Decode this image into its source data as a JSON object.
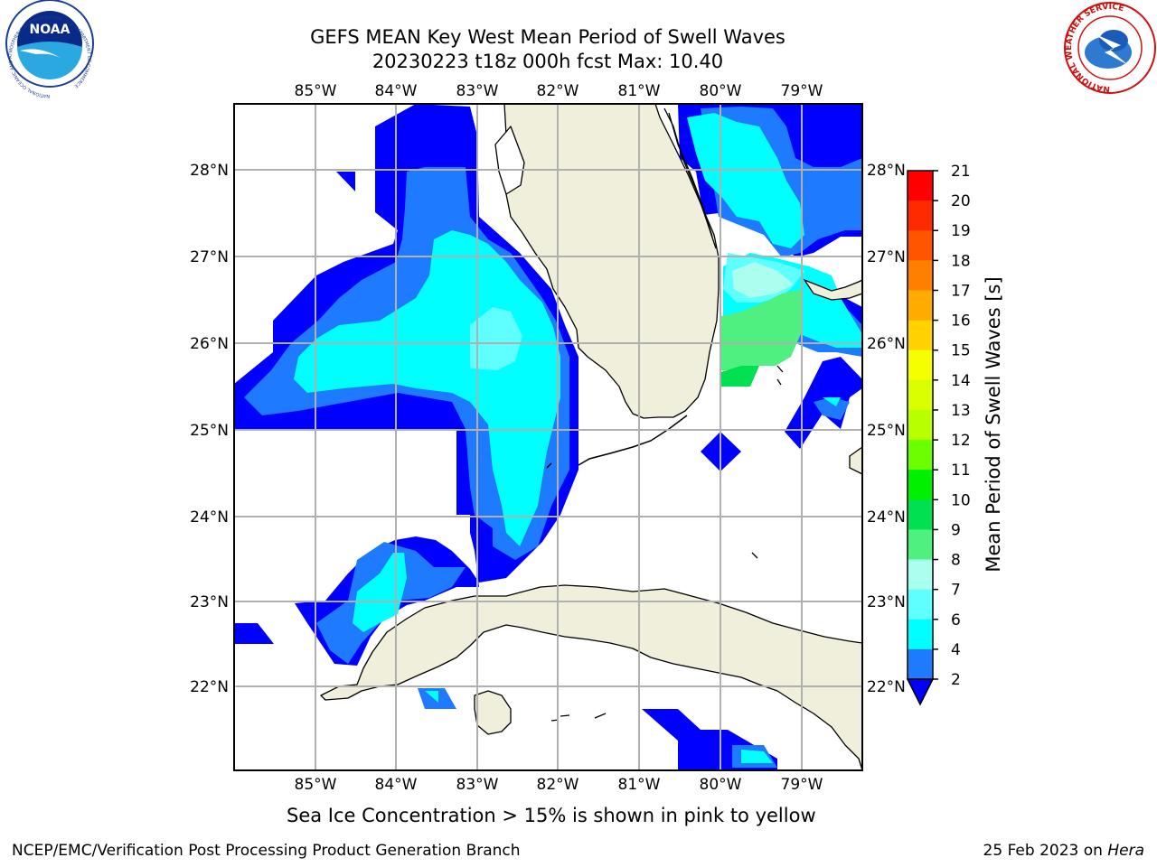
{
  "title": {
    "line1": "GEFS MEAN Key West Mean Period of Swell Waves",
    "line2": "20230223 t18z 000h fcst   Max: 10.40"
  },
  "map": {
    "lon_labels": [
      "85°W",
      "84°W",
      "83°W",
      "82°W",
      "81°W",
      "80°W",
      "79°W"
    ],
    "lat_labels": [
      "28°N",
      "27°N",
      "26°N",
      "25°N",
      "24°N",
      "23°N",
      "22°N"
    ]
  },
  "colorbar": {
    "label": "Mean Period of Swell Waves [s]",
    "ticks": [
      "21",
      "20",
      "19",
      "18",
      "17",
      "16",
      "15",
      "14",
      "13",
      "12",
      "11",
      "10",
      "9",
      "8",
      "7",
      "6",
      "4",
      "2"
    ],
    "colors": [
      "#ff0000",
      "#ff2a00",
      "#ff5500",
      "#ff8000",
      "#ffab00",
      "#ffd200",
      "#f5ff00",
      "#d9ff00",
      "#b8ff00",
      "#6cff00",
      "#00f000",
      "#00e050",
      "#50f080",
      "#aaffee",
      "#5fffff",
      "#00ffff",
      "#1e7bff",
      "#0000ff"
    ]
  },
  "logos": {
    "noaa": "NOAA",
    "noaa_ring": "NATIONAL OCEANIC AND ATMOSPHERIC ADMINISTRATION · U.S. DEPARTMENT OF COMMERCE",
    "nws_ring": "NATIONAL WEATHER SERVICE"
  },
  "caption": "Sea Ice Concentration > 15% is shown in pink to yellow",
  "footer": {
    "left": "NCEP/EMC/Verification Post Processing Product Generation Branch",
    "right_prefix": "25 Feb 2023 on ",
    "right_host": "Hera"
  },
  "style": {
    "land": "#efefdc",
    "grid": "#b0b0b0"
  }
}
